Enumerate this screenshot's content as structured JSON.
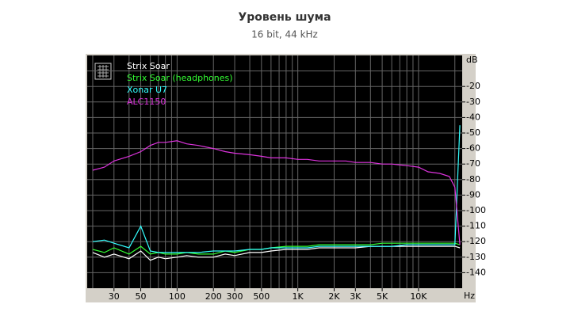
{
  "chart_data": {
    "type": "line",
    "title": "Уровень шума",
    "subtitle": "16 bit, 44 kHz",
    "y_axis_label": "dB",
    "x_axis_label": "Hz",
    "log_x": true,
    "xlim": [
      18,
      23000
    ],
    "xticks": [
      30,
      50,
      100,
      200,
      300,
      500,
      {
        "value": 1000,
        "label": "1K"
      },
      {
        "value": 2000,
        "label": "2K"
      },
      {
        "value": 3000,
        "label": "3K"
      },
      {
        "value": 5000,
        "label": "5K"
      },
      {
        "value": 10000,
        "label": "10K"
      }
    ],
    "xgrid": [
      20,
      30,
      40,
      50,
      60,
      70,
      80,
      90,
      100,
      200,
      300,
      400,
      500,
      600,
      700,
      800,
      900,
      1000,
      2000,
      3000,
      4000,
      5000,
      6000,
      7000,
      8000,
      9000,
      10000,
      20000
    ],
    "ylim": [
      -150,
      0
    ],
    "yticks": [
      -20,
      -30,
      -40,
      -50,
      -60,
      -70,
      -80,
      -90,
      -100,
      -110,
      -120,
      -130,
      -140
    ],
    "ygrid": [
      -10,
      -20,
      -30,
      -40,
      -50,
      -60,
      -70,
      -80,
      -90,
      -100,
      -110,
      -120,
      -130,
      -140
    ],
    "grid": true,
    "legend": "top-left",
    "x": [
      20,
      25,
      30,
      40,
      50,
      60,
      70,
      80,
      100,
      120,
      150,
      200,
      250,
      300,
      400,
      500,
      600,
      800,
      1000,
      1200,
      1500,
      2000,
      2500,
      3000,
      4000,
      5000,
      6000,
      8000,
      10000,
      12000,
      15000,
      18000,
      20000,
      22000
    ],
    "series": [
      {
        "name": "Strix Soar",
        "color": "#ffffff",
        "values": [
          -127,
          -130,
          -128,
          -131,
          -126,
          -132,
          -130,
          -131,
          -130,
          -129,
          -130,
          -130,
          -128,
          -129,
          -127,
          -127,
          -126,
          -125,
          -125,
          -125,
          -124,
          -124,
          -124,
          -124,
          -123,
          -123,
          -123,
          -123,
          -123,
          -123,
          -123,
          -123,
          -123,
          -124
        ]
      },
      {
        "name": "Strix Soar (headphones)",
        "color": "#33ff33",
        "values": [
          -125,
          -127,
          -124,
          -128,
          -123,
          -128,
          -127,
          -128,
          -128,
          -127,
          -128,
          -128,
          -126,
          -127,
          -125,
          -125,
          -124,
          -123,
          -123,
          -123,
          -122,
          -122,
          -122,
          -122,
          -122,
          -121,
          -121,
          -121,
          -121,
          -121,
          -121,
          -121,
          -121,
          -122
        ]
      },
      {
        "name": "Xonar U7",
        "color": "#33ffff",
        "values": [
          -120,
          -119,
          -121,
          -124,
          -110,
          -126,
          -127,
          -127,
          -127,
          -127,
          -127,
          -126,
          -126,
          -126,
          -125,
          -125,
          -124,
          -124,
          -124,
          -124,
          -123,
          -123,
          -123,
          -123,
          -123,
          -123,
          -123,
          -122,
          -122,
          -122,
          -122,
          -122,
          -122,
          -45
        ]
      },
      {
        "name": "ALC1150",
        "color": "#dd33dd",
        "values": [
          -74,
          -72,
          -68,
          -65,
          -62,
          -58,
          -56,
          -56,
          -55,
          -57,
          -58,
          -60,
          -62,
          -63,
          -64,
          -65,
          -66,
          -66,
          -67,
          -67,
          -68,
          -68,
          -68,
          -69,
          -69,
          -70,
          -70,
          -71,
          -72,
          -75,
          -76,
          -78,
          -85,
          -122
        ]
      }
    ]
  }
}
